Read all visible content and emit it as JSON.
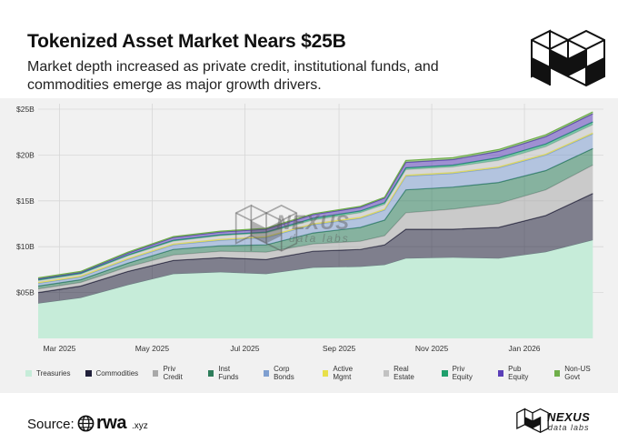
{
  "header": {
    "title": "Tokenized Asset Market Nears $25B",
    "subtitle": "Market depth increased as private credit, institutional funds, and commodities emerge as major growth drivers."
  },
  "source": {
    "label": "Source:",
    "brand": "rwa",
    "tld": ".xyz"
  },
  "branding": {
    "name": "NEXUS",
    "sub": "data labs"
  },
  "colors": {
    "panel_bg": "#f1f1f1",
    "grid": "#d7d7d7"
  },
  "chart_data": {
    "type": "area",
    "stacked": true,
    "x": [
      "2025-02-15",
      "2025-03-15",
      "2025-04-15",
      "2025-05-15",
      "2025-06-15",
      "2025-07-15",
      "2025-08-15",
      "2025-09-15",
      "2025-10-01",
      "2025-10-15",
      "2025-11-15",
      "2025-12-15",
      "2026-01-15",
      "2026-02-15"
    ],
    "x_tick_labels": [
      "Mar 2025",
      "May 2025",
      "Jul 2025",
      "Sep 2025",
      "Nov 2025",
      "Jan 2026"
    ],
    "x_tick_dates": [
      "2025-03-01",
      "2025-05-01",
      "2025-07-01",
      "2025-09-01",
      "2025-11-01",
      "2026-01-01"
    ],
    "x_range": [
      "2025-02-15",
      "2026-02-22"
    ],
    "y_tick_labels": [
      "$05B",
      "$10B",
      "$15B",
      "$20B",
      "$25B"
    ],
    "y_tick_values": [
      5,
      10,
      15,
      20,
      25
    ],
    "ylim": [
      0,
      25
    ],
    "y_unit": "$B",
    "grid": true,
    "legend_position": "bottom",
    "series": [
      {
        "name": "Treasuries",
        "color": "#c6ecd9",
        "values": [
          3.8,
          4.4,
          5.8,
          7.0,
          7.2,
          7.0,
          7.7,
          7.8,
          8.0,
          8.7,
          8.8,
          8.7,
          9.4,
          10.7
        ]
      },
      {
        "name": "Commodities",
        "color": "#21203a",
        "values": [
          1.2,
          1.3,
          1.5,
          1.5,
          1.6,
          1.6,
          1.8,
          1.9,
          2.2,
          3.2,
          3.1,
          3.4,
          4.0,
          5.1
        ]
      },
      {
        "name": "Priv Credit",
        "color": "#a9a9a9",
        "values": [
          0.4,
          0.4,
          0.5,
          0.6,
          0.7,
          0.8,
          0.8,
          0.9,
          1.0,
          1.8,
          2.2,
          2.6,
          2.8,
          3.1
        ]
      },
      {
        "name": "Inst Funds",
        "color": "#2e7d5b",
        "values": [
          0.3,
          0.3,
          0.4,
          0.6,
          0.6,
          0.8,
          1.2,
          1.5,
          1.7,
          2.5,
          2.4,
          2.3,
          2.1,
          1.8
        ]
      },
      {
        "name": "Corp Bonds",
        "color": "#7f9fd0",
        "values": [
          0.3,
          0.3,
          0.4,
          0.5,
          0.6,
          0.8,
          0.9,
          1.0,
          1.1,
          1.5,
          1.5,
          1.6,
          1.7,
          1.6
        ]
      },
      {
        "name": "Active Mgmt",
        "color": "#e8e04a",
        "values": [
          0.1,
          0.1,
          0.1,
          0.1,
          0.1,
          0.1,
          0.1,
          0.1,
          0.1,
          0.1,
          0.1,
          0.1,
          0.1,
          0.1
        ]
      },
      {
        "name": "Real Estate",
        "color": "#c2c2c2",
        "values": [
          0.2,
          0.2,
          0.3,
          0.3,
          0.4,
          0.4,
          0.4,
          0.5,
          0.5,
          0.6,
          0.6,
          0.7,
          0.8,
          0.9
        ]
      },
      {
        "name": "Priv Equity",
        "color": "#1f9f6c",
        "values": [
          0.1,
          0.1,
          0.1,
          0.1,
          0.1,
          0.1,
          0.2,
          0.2,
          0.2,
          0.2,
          0.2,
          0.3,
          0.3,
          0.3
        ]
      },
      {
        "name": "Pub Equity",
        "color": "#5b3fb8",
        "values": [
          0.1,
          0.1,
          0.2,
          0.3,
          0.3,
          0.3,
          0.4,
          0.4,
          0.5,
          0.6,
          0.6,
          0.7,
          0.8,
          0.9
        ]
      },
      {
        "name": "Non-US Govt",
        "color": "#6fae4a",
        "values": [
          0.1,
          0.1,
          0.1,
          0.1,
          0.1,
          0.1,
          0.1,
          0.1,
          0.1,
          0.2,
          0.2,
          0.2,
          0.2,
          0.2
        ]
      }
    ]
  }
}
